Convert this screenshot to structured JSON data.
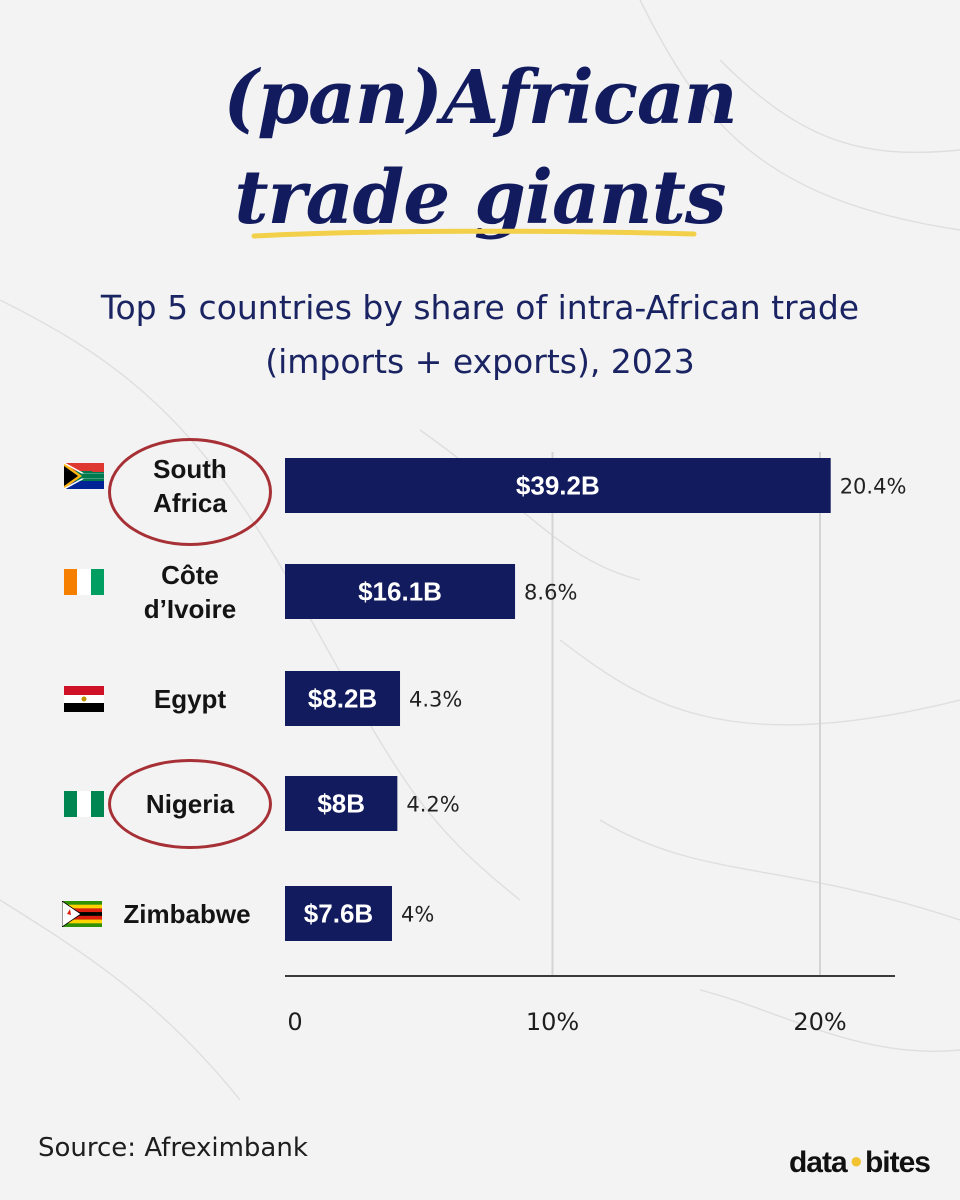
{
  "title": {
    "line1": "(pan)African",
    "line2": "trade giants",
    "underline_color": "#f2d04a"
  },
  "subtitle": {
    "line1": "Top 5 countries by share of intra-African trade",
    "line2": "(imports + exports), 2023"
  },
  "colors": {
    "bar": "#121b5e",
    "highlight_ring": "#a63035",
    "gridline": "#d4d4d4"
  },
  "chart_data": {
    "type": "bar",
    "orientation": "horizontal",
    "categories": [
      "South Africa",
      "Côte d’Ivoire",
      "Egypt",
      "Nigeria",
      "Zimbabwe"
    ],
    "category_lines": [
      [
        "South",
        "Africa"
      ],
      [
        "Côte",
        "d’Ivoire"
      ],
      [
        "Egypt"
      ],
      [
        "Nigeria"
      ],
      [
        "Zimbabwe"
      ]
    ],
    "values": [
      20.4,
      8.6,
      4.3,
      4.2,
      4.0
    ],
    "value_labels": [
      "20.4%",
      "8.6%",
      "4.3%",
      "4.2%",
      "4%"
    ],
    "bar_labels": [
      "$39.2B",
      "$16.1B",
      "$8.2B",
      "$8B",
      "$7.6B"
    ],
    "highlighted": [
      "South Africa",
      "Nigeria"
    ],
    "flags": [
      "south-africa-flag",
      "cote-divoire-flag",
      "egypt-flag",
      "nigeria-flag",
      "zimbabwe-flag"
    ],
    "xlim": [
      0,
      23
    ],
    "xticks": [
      0,
      10,
      20
    ],
    "xtick_labels": [
      "0",
      "10%",
      "20%"
    ],
    "grid": "vertical"
  },
  "footer": {
    "source": "Source: Afreximbank",
    "brand_left": "data",
    "brand_dot": "●",
    "brand_right": "bites"
  }
}
